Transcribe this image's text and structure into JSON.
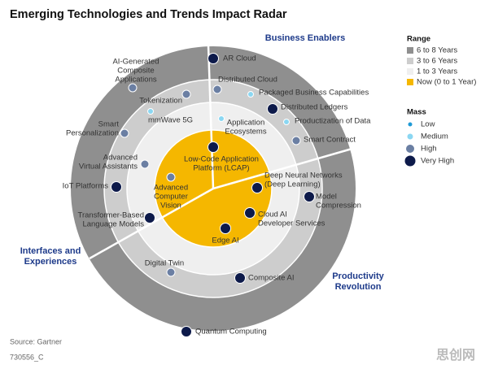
{
  "title": "Emerging Technologies and Trends Impact Radar",
  "sections": [
    "Business Enablers",
    [
      "Interfaces and",
      "Experiences"
    ],
    [
      "Productivity",
      "Revolution"
    ]
  ],
  "legend": {
    "range": {
      "title": "Range",
      "items": [
        {
          "label": "6 to 8 Years",
          "color": "#8f8f8f"
        },
        {
          "label": "3 to 6 Years",
          "color": "#cdcdcd"
        },
        {
          "label": "1 to 3 Years",
          "color": "#efefef"
        },
        {
          "label": "Now (0 to 1 Year)",
          "color": "#f5b700"
        }
      ]
    },
    "mass": {
      "title": "Mass",
      "items": [
        {
          "label": "Low",
          "color": "#1f9ad6"
        },
        {
          "label": "Medium",
          "color": "#8bd7f2"
        },
        {
          "label": "High",
          "color": "#6b7fa3"
        },
        {
          "label": "Very High",
          "color": "#0d1a4a"
        }
      ]
    }
  },
  "nodes": [
    {
      "label": [
        "AR Cloud"
      ],
      "mass": "Very High"
    },
    {
      "label": [
        "AI-Generated",
        "Composite",
        "Applications"
      ],
      "mass": "High"
    },
    {
      "label": [
        "Distributed Cloud"
      ],
      "mass": "High"
    },
    {
      "label": [
        "Packaged Business Capabilities"
      ],
      "mass": "Medium"
    },
    {
      "label": [
        "Tokenization"
      ],
      "mass": "High"
    },
    {
      "label": [
        "mmWave 5G"
      ],
      "mass": "Medium"
    },
    {
      "label": [
        "Distributed Ledgers"
      ],
      "mass": "Very High"
    },
    {
      "label": [
        "Application",
        "Ecosystems"
      ],
      "mass": "Medium"
    },
    {
      "label": [
        "Productization of Data"
      ],
      "mass": "Medium"
    },
    {
      "label": [
        "Smart",
        "Personalization"
      ],
      "mass": "High"
    },
    {
      "label": [
        "Smart Contract"
      ],
      "mass": "High"
    },
    {
      "label": [
        "Low-Code Application",
        "Platform (LCAP)"
      ],
      "mass": "Very High"
    },
    {
      "label": [
        "Advanced",
        "Virtual Assistants"
      ],
      "mass": "High"
    },
    {
      "label": [
        "Deep Neural Networks",
        "(Deep Learning)"
      ],
      "mass": "Very High"
    },
    {
      "label": [
        "IoT Platforms"
      ],
      "mass": "Very High"
    },
    {
      "label": [
        "Advanced",
        "Computer",
        "Vision"
      ],
      "mass": "High"
    },
    {
      "label": [
        "Model",
        "Compression"
      ],
      "mass": "Very High"
    },
    {
      "label": [
        "Transformer-Based",
        "Language Models"
      ],
      "mass": "Very High"
    },
    {
      "label": [
        "Cloud AI",
        "Developer Services"
      ],
      "mass": "Very High"
    },
    {
      "label": [
        "Edge AI"
      ],
      "mass": "Very High"
    },
    {
      "label": [
        "Digital Twin"
      ],
      "mass": "High"
    },
    {
      "label": [
        "Composite AI"
      ],
      "mass": "Very High"
    },
    {
      "label": [
        "Quantum Computing"
      ],
      "mass": "Very High"
    }
  ],
  "source": "Source: Gartner",
  "id": "730556_C",
  "watermark": "思创网"
}
